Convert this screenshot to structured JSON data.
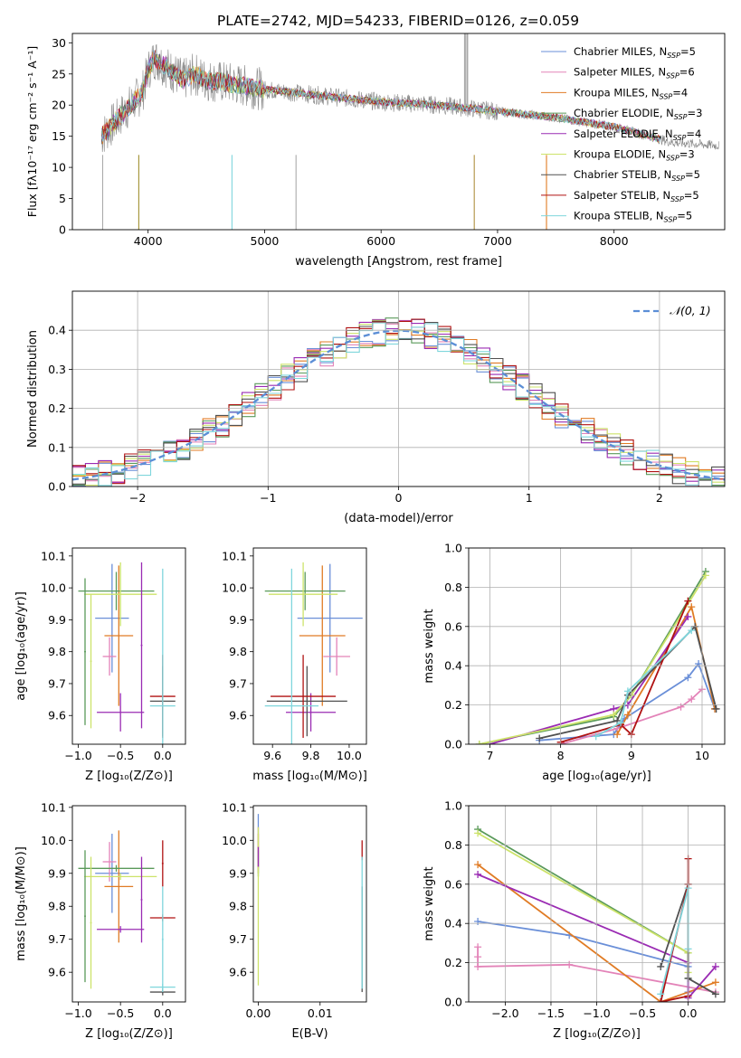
{
  "figure": {
    "title": "PLATE=2742, MJD=54233, FIBERID=0126, z=0.059"
  },
  "colors": {
    "Chabrier MILES": "#6a8fd8",
    "Salpeter MILES": "#e383b8",
    "Kroupa MILES": "#e07b24",
    "Chabrier ELODIE": "#5a9a5a",
    "Salpeter ELODIE": "#9a2bb3",
    "Kroupa ELODIE": "#cde36a",
    "Chabrier STELIB": "#505050",
    "Salpeter STELIB": "#b01212",
    "Kroupa STELIB": "#7fd6dc"
  },
  "chart_data": [
    {
      "id": "spectrum",
      "type": "line",
      "title": "PLATE=2742, MJD=54233, FIBERID=0126, z=0.059",
      "xlabel": "wavelength [Angstrom, rest frame]",
      "ylabel": "Flux [fλ10⁻¹⁷ erg cm⁻² s⁻¹ A⁻¹]",
      "xlim": [
        3350,
        8950
      ],
      "ylim": [
        0,
        31.5
      ],
      "xticks": [
        4000,
        5000,
        6000,
        7000,
        8000
      ],
      "yticks": [
        0,
        5,
        10,
        15,
        20,
        25,
        30
      ],
      "grid": false,
      "legend_position": "top-right",
      "legend": [
        {
          "name": "Chabrier MILES",
          "nssp": "5"
        },
        {
          "name": "Salpeter MILES",
          "nssp": "6"
        },
        {
          "name": "Kroupa MILES",
          "nssp": "4"
        },
        {
          "name": "Chabrier ELODIE",
          "nssp": "3"
        },
        {
          "name": "Salpeter ELODIE",
          "nssp": "4"
        },
        {
          "name": "Kroupa ELODIE",
          "nssp": "3"
        },
        {
          "name": "Chabrier STELIB",
          "nssp": "5"
        },
        {
          "name": "Salpeter STELIB",
          "nssp": "5"
        },
        {
          "name": "Kroupa STELIB",
          "nssp": "5"
        }
      ],
      "continuum": {
        "x": [
          3600,
          3700,
          3800,
          3900,
          3950,
          4000,
          4050,
          4100,
          4200,
          4300,
          4400,
          4500,
          4700,
          5000,
          5500,
          6000,
          6500,
          7000,
          7500,
          8000,
          8500,
          8900
        ],
        "y": [
          15,
          17,
          19,
          21,
          22,
          25.5,
          27.5,
          27,
          25.5,
          24,
          25,
          24,
          23.5,
          22.5,
          21.5,
          20.5,
          20,
          19,
          18,
          16.5,
          14,
          13.5
        ]
      },
      "observed_color": "#888888"
    },
    {
      "id": "residuals",
      "type": "bar",
      "xlabel": "(data-model)/error",
      "ylabel": "Normed distribution",
      "xlim": [
        -2.5,
        2.5
      ],
      "ylim": [
        0,
        0.5
      ],
      "xticks": [
        -2,
        -1,
        0,
        1,
        2
      ],
      "yticks": [
        0.0,
        0.1,
        0.2,
        0.3,
        0.4
      ],
      "grid": true,
      "legend_position": "top-right",
      "reference_curve": {
        "label": "𝒩(0, 1)",
        "mean": 0,
        "sigma": 1,
        "color": "#5b8ed6"
      },
      "bin_width": 0.1
    },
    {
      "id": "age-vs-Z",
      "type": "scatter",
      "xlabel": "Z [log₁₀(Z/Z⊙)]",
      "ylabel": "age  [log₁₀(age/yr)]",
      "xlim": [
        -1.07,
        0.27
      ],
      "ylim": [
        9.51,
        10.125
      ],
      "xticks": [
        -1.0,
        -0.5,
        0.0
      ],
      "yticks": [
        9.6,
        9.7,
        9.8,
        9.9,
        10.0,
        10.1
      ],
      "grid": false,
      "points": [
        {
          "series": "Chabrier MILES",
          "x": -0.6,
          "y": 9.905,
          "xerr": 0.2,
          "yerr": 0.17
        },
        {
          "series": "Salpeter MILES",
          "x": -0.63,
          "y": 9.785,
          "xerr": 0.08,
          "yerr": 0.06
        },
        {
          "series": "Kroupa MILES",
          "x": -0.52,
          "y": 9.85,
          "xerr": 0.17,
          "yerr": 0.22
        },
        {
          "series": "Chabrier ELODIE",
          "x": -0.55,
          "y": 9.99,
          "xerr": 0.45,
          "yerr": 0.06
        },
        {
          "series": "Salpeter ELODIE",
          "x": -0.5,
          "y": 9.61,
          "xerr": 0.28,
          "yerr": 0.06
        },
        {
          "series": "Kroupa ELODIE",
          "x": -0.5,
          "y": 9.98,
          "xerr": 0.43,
          "yerr": 0.1
        },
        {
          "series": "Chabrier STELIB",
          "x": 0.0,
          "y": 9.645,
          "xerr": 0.15,
          "yerr": 0.11
        },
        {
          "series": "Salpeter STELIB",
          "x": 0.0,
          "y": 9.66,
          "xerr": 0.15,
          "yerr": 0.13
        },
        {
          "series": "Kroupa STELIB",
          "x": 0.0,
          "y": 9.63,
          "xerr": 0.15,
          "yerr": 0.43
        },
        {
          "series": "Chabrier ELODIE",
          "x": -0.92,
          "y": 9.8,
          "xerr": 0.01,
          "yerr": 0.23
        },
        {
          "series": "Kroupa ELODIE",
          "x": -0.85,
          "y": 9.77,
          "xerr": 0.01,
          "yerr": 0.21
        },
        {
          "series": "Salpeter ELODIE",
          "x": -0.25,
          "y": 9.82,
          "xerr": 0.01,
          "yerr": 0.26
        }
      ]
    },
    {
      "id": "age-vs-mass",
      "type": "scatter",
      "xlabel": "mass [log₁₀(M/M⊙)]",
      "ylabel": "",
      "xlim": [
        9.5,
        10.09
      ],
      "ylim": [
        9.51,
        10.125
      ],
      "xticks": [
        9.6,
        9.8,
        10.0
      ],
      "yticks": [
        9.6,
        9.7,
        9.8,
        9.9,
        10.0,
        10.1
      ],
      "grid": false,
      "points": [
        {
          "series": "Chabrier MILES",
          "x": 9.9,
          "y": 9.905,
          "xerr": 0.17,
          "yerr": 0.17
        },
        {
          "series": "Salpeter MILES",
          "x": 9.935,
          "y": 9.785,
          "xerr": 0.07,
          "yerr": 0.06
        },
        {
          "series": "Kroupa MILES",
          "x": 9.86,
          "y": 9.85,
          "xerr": 0.12,
          "yerr": 0.22
        },
        {
          "series": "Chabrier ELODIE",
          "x": 9.77,
          "y": 9.99,
          "xerr": 0.21,
          "yerr": 0.06
        },
        {
          "series": "Salpeter ELODIE",
          "x": 9.8,
          "y": 9.61,
          "xerr": 0.13,
          "yerr": 0.06
        },
        {
          "series": "Kroupa ELODIE",
          "x": 9.76,
          "y": 9.98,
          "xerr": 0.18,
          "yerr": 0.1
        },
        {
          "series": "Chabrier STELIB",
          "x": 9.78,
          "y": 9.645,
          "xerr": 0.21,
          "yerr": 0.11
        },
        {
          "series": "Salpeter STELIB",
          "x": 9.76,
          "y": 9.66,
          "xerr": 0.17,
          "yerr": 0.13
        },
        {
          "series": "Kroupa STELIB",
          "x": 9.7,
          "y": 9.63,
          "xerr": 0.14,
          "yerr": 0.43
        }
      ]
    },
    {
      "id": "massweight-vs-age",
      "type": "line",
      "xlabel": "age  [log₁₀(age/yr)]",
      "ylabel": "mass weight",
      "xlim": [
        6.7,
        10.32
      ],
      "ylim": [
        0,
        1.0
      ],
      "xticks": [
        7,
        8,
        9,
        10
      ],
      "yticks": [
        0.0,
        0.2,
        0.4,
        0.6,
        0.8,
        1.0
      ],
      "grid": true,
      "series": [
        {
          "name": "Chabrier MILES",
          "x": [
            7.7,
            8.75,
            8.9,
            9.8,
            9.95,
            10.18
          ],
          "y": [
            0.02,
            0.05,
            0.13,
            0.34,
            0.41,
            0.18
          ]
        },
        {
          "name": "Salpeter MILES",
          "x": [
            8.0,
            8.8,
            9.7,
            9.85,
            10.0
          ],
          "y": [
            0.0,
            0.08,
            0.19,
            0.23,
            0.28
          ]
        },
        {
          "name": "Kroupa MILES",
          "x": [
            8.8,
            8.95,
            9.85,
            10.18
          ],
          "y": [
            0.05,
            0.15,
            0.7,
            0.18
          ]
        },
        {
          "name": "Chabrier ELODIE",
          "x": [
            6.85,
            8.75,
            9.0,
            10.05
          ],
          "y": [
            0.0,
            0.14,
            0.25,
            0.88
          ]
        },
        {
          "name": "Salpeter ELODIE",
          "x": [
            7.0,
            8.75,
            8.95,
            9.8
          ],
          "y": [
            0.0,
            0.18,
            0.2,
            0.65
          ]
        },
        {
          "name": "Kroupa ELODIE",
          "x": [
            6.85,
            8.75,
            9.0,
            10.05
          ],
          "y": [
            0.0,
            0.15,
            0.25,
            0.86
          ]
        },
        {
          "name": "Chabrier STELIB",
          "x": [
            7.7,
            8.8,
            8.95,
            9.9,
            10.2
          ],
          "y": [
            0.03,
            0.12,
            0.25,
            0.6,
            0.18
          ]
        },
        {
          "name": "Salpeter STELIB",
          "x": [
            8.0,
            8.85,
            9.0,
            9.8
          ],
          "y": [
            0.01,
            0.1,
            0.05,
            0.73
          ]
        },
        {
          "name": "Kroupa STELIB",
          "x": [
            8.5,
            8.85,
            8.95,
            9.85
          ],
          "y": [
            0.04,
            0.11,
            0.27,
            0.58
          ]
        }
      ]
    },
    {
      "id": "mass-vs-Z",
      "type": "scatter",
      "xlabel": "Z [log₁₀(Z/Z⊙)]",
      "ylabel": "mass [log₁₀(M/M⊙)]",
      "xlim": [
        -1.07,
        0.27
      ],
      "ylim": [
        9.51,
        10.105
      ],
      "xticks": [
        -1.0,
        -0.5,
        0.0
      ],
      "yticks": [
        9.6,
        9.7,
        9.8,
        9.9,
        10.0,
        10.1
      ],
      "grid": false,
      "points": [
        {
          "series": "Chabrier MILES",
          "x": -0.6,
          "y": 9.9,
          "xerr": 0.2,
          "yerr": 0.12
        },
        {
          "series": "Salpeter MILES",
          "x": -0.63,
          "y": 9.935,
          "xerr": 0.08,
          "yerr": 0.06
        },
        {
          "series": "Kroupa MILES",
          "x": -0.52,
          "y": 9.86,
          "xerr": 0.17,
          "yerr": 0.17
        },
        {
          "series": "Chabrier ELODIE",
          "x": -0.55,
          "y": 9.915,
          "xerr": 0.45,
          "yerr": 0.01
        },
        {
          "series": "Salpeter ELODIE",
          "x": -0.5,
          "y": 9.73,
          "xerr": 0.28,
          "yerr": 0.01
        },
        {
          "series": "Kroupa ELODIE",
          "x": -0.5,
          "y": 9.89,
          "xerr": 0.43,
          "yerr": 0.01
        },
        {
          "series": "Chabrier STELIB",
          "x": 0.0,
          "y": 9.54,
          "xerr": 0.15,
          "yerr": 0.01
        },
        {
          "series": "Salpeter STELIB",
          "x": 0.0,
          "y": 9.765,
          "xerr": 0.15,
          "yerr": 0.01
        },
        {
          "series": "Kroupa STELIB",
          "x": 0.0,
          "y": 9.555,
          "xerr": 0.15,
          "yerr": 0.01
        },
        {
          "series": "Chabrier ELODIE",
          "x": -0.92,
          "y": 9.77,
          "xerr": 0.01,
          "yerr": 0.2
        },
        {
          "series": "Kroupa ELODIE",
          "x": -0.85,
          "y": 9.75,
          "xerr": 0.01,
          "yerr": 0.2
        },
        {
          "series": "Salpeter ELODIE",
          "x": -0.25,
          "y": 9.82,
          "xerr": 0.01,
          "yerr": 0.13
        },
        {
          "series": "Salpeter STELIB",
          "x": 0.0,
          "y": 9.93,
          "xerr": 0.01,
          "yerr": 0.07
        },
        {
          "series": "Kroupa STELIB",
          "x": 0.0,
          "y": 9.7,
          "xerr": 0.01,
          "yerr": 0.16
        }
      ]
    },
    {
      "id": "mass-vs-EBV",
      "type": "scatter",
      "xlabel": "E(B-V)",
      "ylabel": "",
      "xlim": [
        -0.0008,
        0.0175
      ],
      "ylim": [
        9.51,
        10.105
      ],
      "xticks": [
        0.0,
        0.01
      ],
      "xticklabels": [
        "0.00",
        "0.01"
      ],
      "yticks": [
        9.6,
        9.7,
        9.8,
        9.9,
        10.0,
        10.1
      ],
      "grid": false,
      "points": [
        {
          "series": "Chabrier MILES",
          "x": 0.0,
          "y": 10.0,
          "xerr": 0,
          "yerr": 0.08
        },
        {
          "series": "Salpeter MILES",
          "x": 0.0,
          "y": 9.98,
          "xerr": 0,
          "yerr": 0.06
        },
        {
          "series": "Kroupa MILES",
          "x": 0.0,
          "y": 9.96,
          "xerr": 0,
          "yerr": 0.06
        },
        {
          "series": "Chabrier ELODIE",
          "x": 0.0,
          "y": 9.93,
          "xerr": 0,
          "yerr": 0.04
        },
        {
          "series": "Kroupa ELODIE",
          "x": 0.0,
          "y": 9.8,
          "xerr": 0,
          "yerr": 0.24
        },
        {
          "series": "Salpeter ELODIE",
          "x": 0.0,
          "y": 9.95,
          "xerr": 0,
          "yerr": 0.03
        },
        {
          "series": "Chabrier STELIB",
          "x": 0.0168,
          "y": 9.7,
          "xerr": 0,
          "yerr": 0.16
        },
        {
          "series": "Salpeter STELIB",
          "x": 0.0168,
          "y": 9.97,
          "xerr": 0,
          "yerr": 0.03
        },
        {
          "series": "Kroupa STELIB",
          "x": 0.0168,
          "y": 9.75,
          "xerr": 0,
          "yerr": 0.2
        }
      ]
    },
    {
      "id": "massweight-vs-Z",
      "type": "line",
      "xlabel": "Z [log₁₀(Z/Z⊙)]",
      "ylabel": "mass weight",
      "xlim": [
        -2.4,
        0.4
      ],
      "ylim": [
        0,
        1.0
      ],
      "xticks": [
        -2.0,
        -1.5,
        -1.0,
        -0.5,
        0.0
      ],
      "yticks": [
        0.0,
        0.2,
        0.4,
        0.6,
        0.8,
        1.0
      ],
      "grid": true,
      "series": [
        {
          "name": "Chabrier MILES",
          "x": [
            -2.3,
            -1.3,
            0.0,
            0.0
          ],
          "y": [
            0.41,
            0.34,
            0.18,
            0.05
          ]
        },
        {
          "name": "Salpeter MILES",
          "x": [
            -2.3,
            -2.3,
            -2.3,
            -1.3,
            0.3
          ],
          "y": [
            0.28,
            0.23,
            0.18,
            0.19,
            0.05
          ]
        },
        {
          "name": "Kroupa MILES",
          "x": [
            -2.3,
            -0.3,
            0.3
          ],
          "y": [
            0.7,
            0.0,
            0.1
          ]
        },
        {
          "name": "Chabrier ELODIE",
          "x": [
            -2.3,
            0.0,
            0.0
          ],
          "y": [
            0.88,
            0.25,
            0.12
          ]
        },
        {
          "name": "Salpeter ELODIE",
          "x": [
            -2.3,
            0.0,
            0.0,
            0.3
          ],
          "y": [
            0.65,
            0.2,
            0.02,
            0.18
          ]
        },
        {
          "name": "Kroupa ELODIE",
          "x": [
            -2.3,
            0.0,
            0.0
          ],
          "y": [
            0.86,
            0.25,
            0.15
          ]
        },
        {
          "name": "Chabrier STELIB",
          "x": [
            -0.3,
            0.0,
            0.0,
            0.3
          ],
          "y": [
            0.18,
            0.6,
            0.12,
            0.04
          ]
        },
        {
          "name": "Salpeter STELIB",
          "x": [
            0.0,
            0.0,
            -0.3,
            0.0
          ],
          "y": [
            0.73,
            0.6,
            0.0,
            0.03
          ]
        },
        {
          "name": "Kroupa STELIB",
          "x": [
            -0.3,
            0.0,
            0.0
          ],
          "y": [
            0.04,
            0.58,
            0.27
          ]
        }
      ]
    }
  ]
}
